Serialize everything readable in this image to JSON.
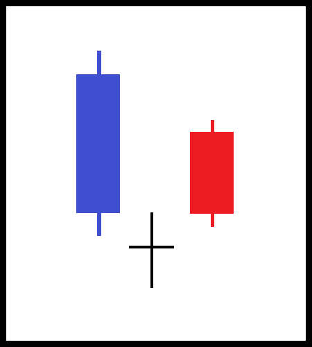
{
  "diagram": {
    "type": "candlestick-pattern",
    "frame_color": "#000000",
    "background_color": "#ffffff",
    "candles": [
      {
        "direction": "bullish",
        "color": "#3f4fcf"
      },
      {
        "direction": "doji",
        "color": "#000000"
      },
      {
        "direction": "bearish",
        "color": "#ed1c24"
      }
    ]
  }
}
